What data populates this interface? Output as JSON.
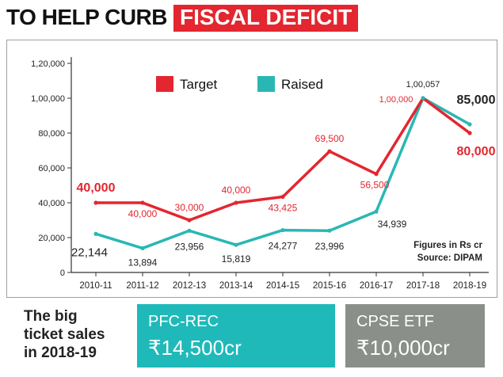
{
  "headline": {
    "part1": "TO HELP CURB",
    "part2": "FISCAL DEFICIT"
  },
  "colors": {
    "target": "#e3262f",
    "raised": "#2ab7b4",
    "card_pfc": "#1fb9b9",
    "card_cpse": "#8b8f8a"
  },
  "chart_data": {
    "type": "line",
    "categories": [
      "2010-11",
      "2011-12",
      "2012-13",
      "2013-14",
      "2014-15",
      "2015-16",
      "2016-17",
      "2017-18",
      "2018-19"
    ],
    "series": [
      {
        "name": "Target",
        "values": [
          40000,
          40000,
          30000,
          40000,
          43425,
          69500,
          56500,
          100000,
          80000
        ],
        "labels": [
          "40,000",
          "40,000",
          "30,000",
          "40,000",
          "43,425",
          "69,500",
          "56,500",
          "1,00,000",
          "80,000"
        ]
      },
      {
        "name": "Raised",
        "values": [
          22144,
          13894,
          23956,
          15819,
          24277,
          23996,
          34939,
          100057,
          85000
        ],
        "labels": [
          "22,144",
          "13,894",
          "23,956",
          "15,819",
          "24,277",
          "23,996",
          "34,939",
          "1,00,057",
          "85,000"
        ]
      }
    ],
    "yticks": [
      0,
      20000,
      40000,
      60000,
      80000,
      100000,
      120000
    ],
    "ytick_labels": [
      "0",
      "20,000",
      "40,000",
      "60,000",
      "80,000",
      "1,00,000",
      "1,20,000"
    ],
    "ylim": [
      0,
      120000
    ],
    "legend_position": "top-left",
    "grid": false,
    "notes": [
      "Figures in Rs cr",
      "Source: DIPAM"
    ]
  },
  "bottom": {
    "intro": [
      "The big",
      "ticket sales",
      "in 2018-19"
    ],
    "cards": [
      {
        "name": "PFC-REC",
        "amount": "₹14,500cr"
      },
      {
        "name": "CPSE ETF",
        "amount": "₹10,000cr"
      }
    ]
  }
}
